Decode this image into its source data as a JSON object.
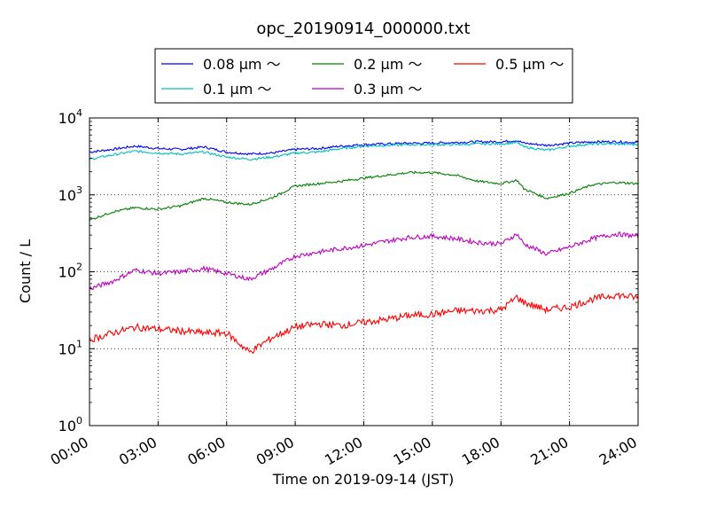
{
  "chart_data": {
    "type": "line",
    "title": "opc_20190914_000000.txt",
    "xlabel": "Time on 2019-09-14 (JST)",
    "ylabel": "Count / L",
    "x_ticks": [
      "00:00",
      "03:00",
      "06:00",
      "09:00",
      "12:00",
      "15:00",
      "18:00",
      "21:00",
      "24:00"
    ],
    "x_range_hours": [
      0,
      24
    ],
    "y_scale": "log",
    "ylim": [
      1,
      10000
    ],
    "y_ticks": [
      {
        "base": "10",
        "exp": "0"
      },
      {
        "base": "10",
        "exp": "1"
      },
      {
        "base": "10",
        "exp": "2"
      },
      {
        "base": "10",
        "exp": "3"
      },
      {
        "base": "10",
        "exp": "4"
      }
    ],
    "grid": true,
    "legend_position": "top-center, above plot",
    "x_hours": [
      0,
      1,
      2,
      3,
      4,
      5,
      6,
      7,
      8,
      9,
      10,
      11,
      12,
      13,
      14,
      15,
      16,
      17,
      18,
      18.7,
      19,
      20,
      21,
      22,
      23,
      24
    ],
    "series": [
      {
        "name": "0.08 μm ～",
        "color": "#0000ff",
        "values": [
          3600,
          3900,
          4300,
          4000,
          3900,
          4200,
          3600,
          3400,
          3500,
          3900,
          4000,
          4300,
          4500,
          4600,
          4700,
          4700,
          4800,
          4900,
          4900,
          5100,
          4700,
          4400,
          4700,
          4900,
          4900,
          4800
        ]
      },
      {
        "name": "0.1 μm ～",
        "color": "#00bfbf",
        "values": [
          2900,
          3300,
          3700,
          3500,
          3400,
          3600,
          3100,
          2900,
          3100,
          3500,
          3600,
          4000,
          4300,
          4400,
          4500,
          4500,
          4500,
          4600,
          4600,
          4800,
          4200,
          3800,
          4300,
          4600,
          4600,
          4500
        ]
      },
      {
        "name": "0.2 μm ～",
        "color": "#008000",
        "values": [
          470,
          600,
          680,
          650,
          720,
          900,
          800,
          750,
          920,
          1300,
          1400,
          1500,
          1650,
          1800,
          1950,
          1950,
          1800,
          1500,
          1400,
          1550,
          1200,
          900,
          1050,
          1350,
          1450,
          1400
        ]
      },
      {
        "name": "0.3 μm ～",
        "color": "#bf00bf",
        "values": [
          60,
          75,
          105,
          95,
          100,
          110,
          95,
          80,
          110,
          160,
          180,
          200,
          220,
          250,
          280,
          290,
          270,
          240,
          230,
          310,
          230,
          170,
          210,
          270,
          310,
          290
        ]
      },
      {
        "name": "0.5 μm ～",
        "color": "#ff0000",
        "values": [
          13,
          16,
          19,
          18,
          17,
          16,
          16,
          9,
          14,
          19,
          21,
          20,
          22,
          24,
          27,
          28,
          31,
          31,
          32,
          47,
          40,
          32,
          35,
          44,
          50,
          46
        ]
      }
    ]
  }
}
